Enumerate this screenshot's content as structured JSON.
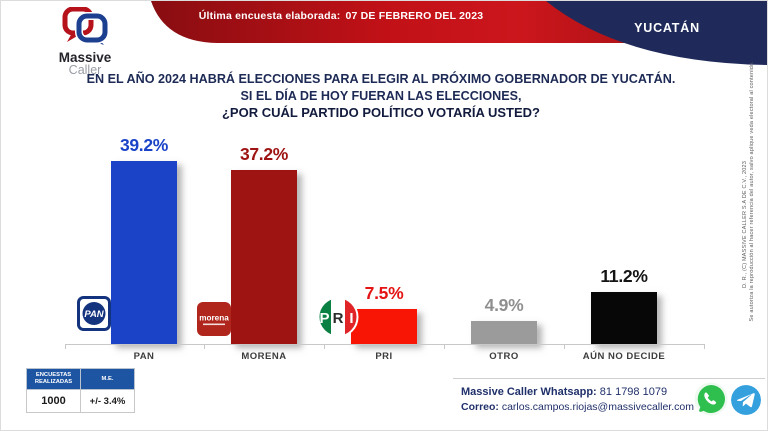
{
  "header": {
    "banner_label": "Última encuesta elaborada:",
    "banner_date": "07 DE FEBRERO DEL 2023",
    "region": "YUCATÁN",
    "logo_line1": "Massive",
    "logo_line2": "Caller"
  },
  "question": {
    "line1": "EN EL AÑO 2024 HABRÁ ELECCIONES PARA ELEGIR AL PRÓXIMO GOBERNADOR DE YUCATÁN.",
    "line2": "SI EL DÍA DE HOY FUERAN LAS ELECCIONES,",
    "line3": "¿POR CUÁL PARTIDO POLÍTICO VOTARÍA USTED?"
  },
  "chart_data": {
    "type": "bar",
    "title": "¿POR CUÁL PARTIDO POLÍTICO VOTARÍA USTED?",
    "categories": [
      "PAN",
      "MORENA",
      "PRI",
      "OTRO",
      "AÚN NO DECIDE"
    ],
    "values": [
      39.2,
      37.2,
      7.5,
      4.9,
      11.2
    ],
    "value_labels": [
      "39.2%",
      "37.2%",
      "7.5%",
      "4.9%",
      "11.2%"
    ],
    "bar_colors": [
      "#1a43c8",
      "#9d1413",
      "#f91505",
      "#9b9b9b",
      "#070707"
    ],
    "label_colors": [
      "#1a43c8",
      "#9d1413",
      "#e31413",
      "#8f8f8f",
      "#141414"
    ],
    "xlabel": "",
    "ylabel": "",
    "ylim": [
      0,
      42
    ],
    "grid": false,
    "legend": null
  },
  "party_logos": {
    "pan": "PAN",
    "morena": "morena",
    "pri_p": "P",
    "pri_r": "R",
    "pri_i": "I"
  },
  "stats_table": {
    "headers": [
      "ENCUESTAS REALIZADAS",
      "M.E."
    ],
    "rows": [
      [
        "1000",
        "+/- 3.4%"
      ]
    ]
  },
  "contact": {
    "whatsapp_label": "Massive Caller Whatsapp:",
    "whatsapp_number": "81 1798 1079",
    "email_label": "Correo:",
    "email": "carlos.campos.riojas@massivecaller.com"
  },
  "copyright": {
    "line1": "D. R., (C) MASSIVE CALLER S.A DE C.V., 2023",
    "line2": "Se autoriza la reproducción al hacer referencia del autor, salvo aplique veda electoral al contenido."
  },
  "colors": {
    "banner_red": "#c11117",
    "navy": "#1f2a5b",
    "table_header_blue": "#1e55a3",
    "whatsapp_green": "#2fbf4e",
    "telegram_blue": "#34a0de"
  }
}
